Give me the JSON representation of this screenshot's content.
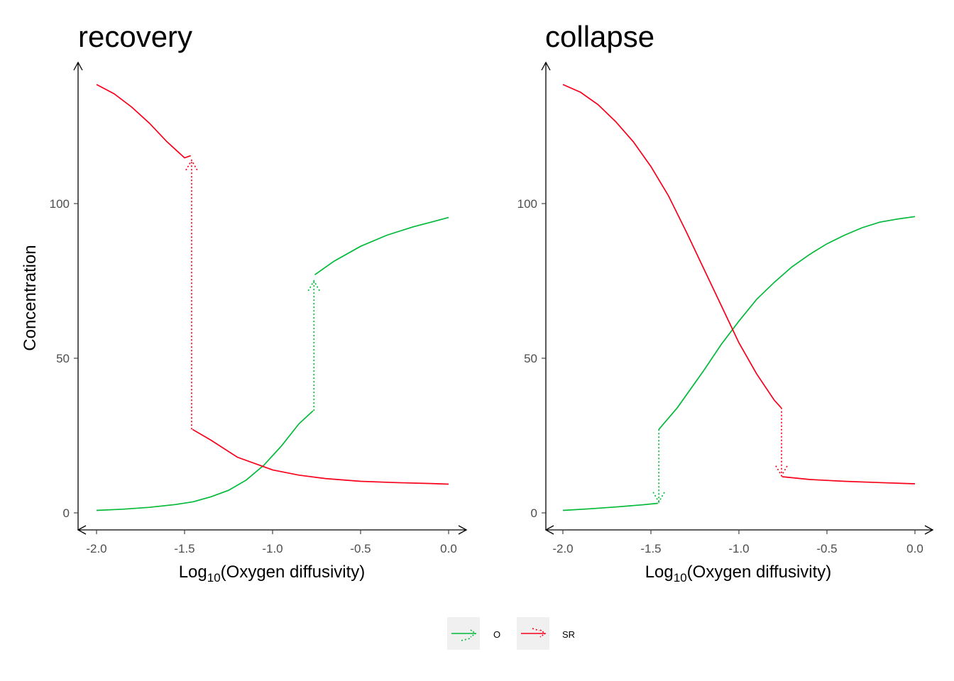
{
  "chart_data": [
    {
      "type": "line",
      "title": "recovery",
      "xlabel_prefix": "Log",
      "xlabel_sub": "10",
      "xlabel_suffix": "(Oxygen diffusivity)",
      "ylabel": "Concentration",
      "xlim": [
        -2.0,
        0.0
      ],
      "ylim": [
        0,
        140
      ],
      "x_ticks": [
        -2.0,
        -1.5,
        -1.0,
        -0.5,
        0.0
      ],
      "x_tick_labels": [
        "-2.0",
        "-1.5",
        "-1.0",
        "-0.5",
        "0.0"
      ],
      "y_ticks": [
        0,
        50,
        100
      ],
      "y_tick_labels": [
        "0",
        "50",
        "100"
      ],
      "series": [
        {
          "name": "O",
          "color": "#00ba38",
          "solid": [
            {
              "x": [
                -2.0,
                -1.85,
                -1.7,
                -1.55,
                -1.45,
                -1.35,
                -1.25,
                -1.15,
                -1.05,
                -0.95,
                -0.85,
                -0.77
              ],
              "y": [
                0.8,
                1.2,
                1.8,
                2.7,
                3.6,
                5.2,
                7.3,
                10.6,
                15.4,
                21.6,
                28.8,
                33
              ]
            },
            {
              "x": [
                -0.76,
                -0.65,
                -0.5,
                -0.35,
                -0.2,
                -0.1,
                0.0
              ],
              "y": [
                77,
                81.4,
                86.2,
                89.8,
                92.5,
                94,
                95.5
              ]
            }
          ],
          "transition": {
            "x": -0.765,
            "from": 33,
            "to": 75
          }
        },
        {
          "name": "SR",
          "color": "#f8001a",
          "solid": [
            {
              "x": [
                -2.0,
                -1.9,
                -1.8,
                -1.7,
                -1.6,
                -1.5,
                -1.465
              ],
              "y": [
                138.5,
                135.5,
                131.2,
                126,
                120,
                114.8,
                115.5
              ]
            },
            {
              "x": [
                -1.455,
                -1.35,
                -1.2,
                -1.0,
                -0.85,
                -0.7,
                -0.5,
                -0.3,
                -0.1,
                0.0
              ],
              "y": [
                27,
                23.5,
                18,
                13.9,
                12.2,
                11.1,
                10.2,
                9.8,
                9.5,
                9.3
              ]
            }
          ],
          "transition": {
            "x": -1.46,
            "from": 27,
            "to": 114
          }
        }
      ]
    },
    {
      "type": "line",
      "title": "collapse",
      "xlabel_prefix": "Log",
      "xlabel_sub": "10",
      "xlabel_suffix": "(Oxygen diffusivity)",
      "ylabel": "",
      "xlim": [
        -2.0,
        0.0
      ],
      "ylim": [
        0,
        140
      ],
      "x_ticks": [
        -2.0,
        -1.5,
        -1.0,
        -0.5,
        0.0
      ],
      "x_tick_labels": [
        "-2.0",
        "-1.5",
        "-1.0",
        "-0.5",
        "0.0"
      ],
      "y_ticks": [
        0,
        50,
        100
      ],
      "y_tick_labels": [
        "0",
        "50",
        "100"
      ],
      "series": [
        {
          "name": "O",
          "color": "#00ba38",
          "solid": [
            {
              "x": [
                -2.0,
                -1.85,
                -1.7,
                -1.55,
                -1.46
              ],
              "y": [
                0.8,
                1.3,
                1.9,
                2.6,
                3.1
              ]
            },
            {
              "x": [
                -1.455,
                -1.35,
                -1.2,
                -1.1,
                -1.0,
                -0.9,
                -0.8,
                -0.7,
                -0.6,
                -0.5,
                -0.4,
                -0.3,
                -0.2,
                -0.1,
                0.0
              ],
              "y": [
                27,
                34,
                46,
                54.5,
                62,
                69,
                74.5,
                79.5,
                83.5,
                87,
                89.8,
                92.2,
                94,
                95,
                95.8
              ]
            }
          ],
          "transition": {
            "x": -1.455,
            "from": 27,
            "to": 3.5
          }
        },
        {
          "name": "SR",
          "color": "#f8001a",
          "solid": [
            {
              "x": [
                -2.0,
                -1.9,
                -1.8,
                -1.7,
                -1.6,
                -1.5,
                -1.4,
                -1.3,
                -1.2,
                -1.1,
                -1.0,
                -0.9,
                -0.8,
                -0.76
              ],
              "y": [
                138.5,
                136,
                132,
                126.5,
                120,
                112,
                102.5,
                91,
                79,
                67,
                55,
                45,
                36.5,
                34
              ]
            },
            {
              "x": [
                -0.755,
                -0.6,
                -0.4,
                -0.2,
                0.0
              ],
              "y": [
                11.7,
                10.8,
                10.2,
                9.8,
                9.4
              ]
            }
          ],
          "transition": {
            "x": -0.758,
            "from": 34,
            "to": 12
          }
        }
      ]
    }
  ],
  "legend": {
    "placement": "bottom",
    "items": [
      {
        "label": "O",
        "color": "#00ba38"
      },
      {
        "label": "SR",
        "color": "#f8001a"
      }
    ]
  }
}
